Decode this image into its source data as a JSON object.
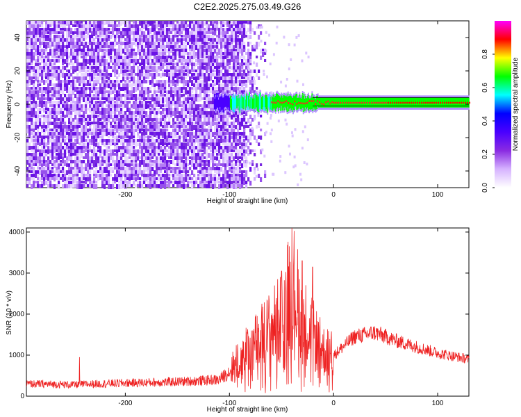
{
  "title": "C2E2.2025.275.03.49.G26",
  "chart_data": [
    {
      "type": "heatmap",
      "xlabel": "Height of straight line (km)",
      "ylabel": "Frequency (Hz)",
      "xlim": [
        -295,
        130
      ],
      "ylim": [
        -50,
        50
      ],
      "xticks": [
        -200,
        -100,
        0,
        100
      ],
      "yticks": [
        -40,
        -20,
        0,
        20,
        40
      ],
      "colorbar": {
        "label": "Normalized spectral amplitude",
        "range": [
          0.0,
          1.0
        ],
        "ticks": [
          0.0,
          0.2,
          0.4,
          0.6,
          0.8
        ],
        "colormap": [
          "#ffffff",
          "#d6b3ff",
          "#8a2be2",
          "#4a00ff",
          "#0000ff",
          "#00ffff",
          "#00ff00",
          "#ffff00",
          "#ff0000",
          "#ff00ff"
        ]
      },
      "features": {
        "noise_region_x": [
          -295,
          -85
        ],
        "signal_band_center_hz": 1,
        "signal_band_halfwidth_hz": 3,
        "signal_start_x": -115
      }
    },
    {
      "type": "line",
      "xlabel": "Height of straight line (km)",
      "ylabel": "SNR (10 * v/v)",
      "xlim": [
        -295,
        130
      ],
      "ylim": [
        0,
        4100
      ],
      "xticks": [
        -200,
        -100,
        0,
        100
      ],
      "yticks": [
        0,
        1000,
        2000,
        3000,
        4000
      ],
      "series": [
        {
          "color": "#ee2222",
          "envelope": {
            "x": [
              -295,
              -250,
              -200,
              -150,
              -110,
              -100,
              -90,
              -70,
              -50,
              -40,
              -30,
              -20,
              -10,
              0,
              20,
              40,
              60,
              80,
              100,
              130
            ],
            "y": [
              300,
              280,
              320,
              350,
              400,
              600,
              900,
              1400,
              1900,
              2800,
              1900,
              1500,
              1100,
              1000,
              1450,
              1550,
              1350,
              1200,
              1050,
              900
            ]
          },
          "peaks": [
            {
              "x": -244,
              "y": 950
            },
            {
              "x": -40,
              "y": 4100
            },
            {
              "x": -30,
              "y": 3300
            },
            {
              "x": -20,
              "y": 3150
            },
            {
              "x": -50,
              "y": 3050
            }
          ]
        }
      ]
    }
  ]
}
